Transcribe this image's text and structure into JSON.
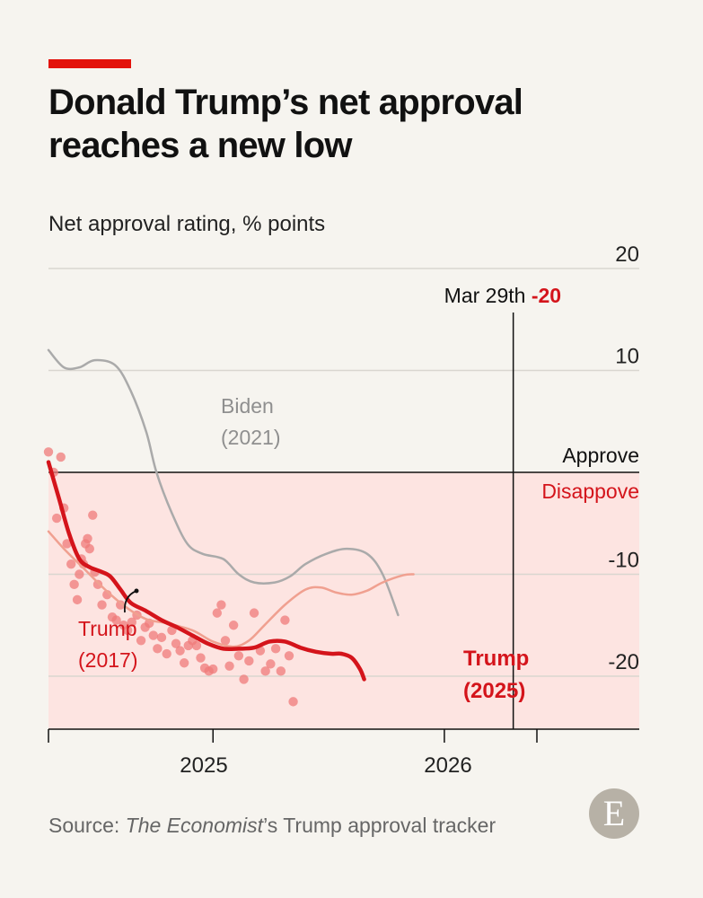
{
  "header": {
    "title": "Donald Trump’s net approval reaches a new low",
    "accent_color": "#e3120b"
  },
  "footer": {
    "source_prefix": "Source: ",
    "source_italic": "The Economist",
    "source_suffix": "’s Trump approval tracker",
    "logo_letter": "E"
  },
  "chart_data": {
    "type": "line",
    "ylabel": "Net approval rating, % points",
    "ylim": [
      -25,
      20
    ],
    "y_ticks": [
      20,
      10,
      -10,
      -20
    ],
    "x_ticks": [
      {
        "label": "2025",
        "days": 0
      },
      {
        "label": "2026",
        "days": 365
      }
    ],
    "x_axis_ticks_days": [
      -20,
      140,
      365,
      455
    ],
    "xlim_days": [
      -20,
      505
    ],
    "grid": true,
    "zero_labels": {
      "above": "Approve",
      "below": "Disappove"
    },
    "marker": {
      "label": "Mar 29th",
      "value_label": "-20",
      "days": 432
    },
    "colors": {
      "trump_2025": "#d4141b",
      "trump_2017": "#f0a090",
      "biden_2021": "#aaaaaa",
      "dots": "#ef7b79",
      "disapprove_fill": "#fde4e1"
    },
    "series": [
      {
        "name": "Biden (2021)",
        "label_lines": [
          "Biden",
          "(2021)"
        ],
        "points": [
          [
            -20,
            12
          ],
          [
            -5,
            10.3
          ],
          [
            10,
            10.3
          ],
          [
            25,
            11
          ],
          [
            45,
            10.5
          ],
          [
            60,
            8
          ],
          [
            75,
            4
          ],
          [
            85,
            0
          ],
          [
            100,
            -4
          ],
          [
            115,
            -7
          ],
          [
            130,
            -8
          ],
          [
            150,
            -8.5
          ],
          [
            165,
            -10
          ],
          [
            180,
            -10.8
          ],
          [
            200,
            -10.8
          ],
          [
            215,
            -10.2
          ],
          [
            230,
            -9
          ],
          [
            250,
            -8
          ],
          [
            270,
            -7.5
          ],
          [
            290,
            -8
          ],
          [
            305,
            -10
          ],
          [
            320,
            -14
          ]
        ]
      },
      {
        "name": "Trump (2017)",
        "label_lines": [
          "Trump",
          "(2017)"
        ],
        "points": [
          [
            -20,
            -5.8
          ],
          [
            -5,
            -7.5
          ],
          [
            15,
            -9.5
          ],
          [
            35,
            -11.5
          ],
          [
            55,
            -13.2
          ],
          [
            75,
            -14.4
          ],
          [
            95,
            -14.8
          ],
          [
            120,
            -15.5
          ],
          [
            140,
            -16.6
          ],
          [
            160,
            -17.1
          ],
          [
            175,
            -16.5
          ],
          [
            190,
            -15
          ],
          [
            210,
            -13
          ],
          [
            230,
            -11.5
          ],
          [
            245,
            -11.3
          ],
          [
            260,
            -11.8
          ],
          [
            275,
            -12
          ],
          [
            290,
            -11.6
          ],
          [
            305,
            -10.8
          ],
          [
            325,
            -10.1
          ],
          [
            335,
            -10
          ]
        ]
      },
      {
        "name": "Trump (2025)",
        "label_lines": [
          "Trump",
          "(2025)"
        ],
        "points": [
          [
            -20,
            1
          ],
          [
            -10,
            -2.5
          ],
          [
            0,
            -6
          ],
          [
            10,
            -8.5
          ],
          [
            20,
            -9.3
          ],
          [
            30,
            -9.7
          ],
          [
            40,
            -10.2
          ],
          [
            50,
            -11.5
          ],
          [
            60,
            -12.8
          ],
          [
            75,
            -13.6
          ],
          [
            90,
            -14.5
          ],
          [
            105,
            -15.2
          ],
          [
            120,
            -16
          ],
          [
            135,
            -16.8
          ],
          [
            150,
            -17.3
          ],
          [
            165,
            -17.3
          ],
          [
            180,
            -17.2
          ],
          [
            195,
            -16.6
          ],
          [
            210,
            -16.6
          ],
          [
            225,
            -17.2
          ],
          [
            240,
            -17.6
          ],
          [
            255,
            -17.8
          ],
          [
            265,
            -17.8
          ],
          [
            275,
            -18.2
          ],
          [
            283,
            -19.3
          ],
          [
            287,
            -20.3
          ]
        ]
      }
    ],
    "poll_dots": [
      [
        -20,
        2
      ],
      [
        -15,
        0
      ],
      [
        -12,
        -4.5
      ],
      [
        -8,
        1.5
      ],
      [
        -5,
        -3.5
      ],
      [
        -2,
        -7
      ],
      [
        2,
        -9
      ],
      [
        5,
        -11
      ],
      [
        8,
        -12.5
      ],
      [
        10,
        -10
      ],
      [
        12,
        -8.5
      ],
      [
        14,
        -9
      ],
      [
        16,
        -7
      ],
      [
        18,
        -6.5
      ],
      [
        20,
        -7.5
      ],
      [
        23,
        -4.2
      ],
      [
        25,
        -9.8
      ],
      [
        28,
        -11
      ],
      [
        32,
        -13
      ],
      [
        37,
        -12
      ],
      [
        42,
        -14.2
      ],
      [
        46,
        -14.5
      ],
      [
        50,
        -13
      ],
      [
        53,
        -15
      ],
      [
        57,
        -15.5
      ],
      [
        61,
        -14.7
      ],
      [
        66,
        -14
      ],
      [
        70,
        -16.5
      ],
      [
        74,
        -15.2
      ],
      [
        78,
        -14.8
      ],
      [
        82,
        -16
      ],
      [
        86,
        -17.3
      ],
      [
        90,
        -16.2
      ],
      [
        95,
        -17.8
      ],
      [
        100,
        -15.5
      ],
      [
        104,
        -16.8
      ],
      [
        108,
        -17.5
      ],
      [
        112,
        -18.7
      ],
      [
        116,
        -17
      ],
      [
        120,
        -16.5
      ],
      [
        124,
        -17
      ],
      [
        128,
        -18.2
      ],
      [
        132,
        -19.2
      ],
      [
        136,
        -19.5
      ],
      [
        140,
        -19.3
      ],
      [
        144,
        -13.8
      ],
      [
        148,
        -13
      ],
      [
        152,
        -16.5
      ],
      [
        156,
        -19
      ],
      [
        160,
        -15
      ],
      [
        165,
        -18
      ],
      [
        170,
        -20.3
      ],
      [
        175,
        -18.5
      ],
      [
        180,
        -13.8
      ],
      [
        186,
        -17.5
      ],
      [
        191,
        -19.5
      ],
      [
        196,
        -18.8
      ],
      [
        201,
        -17.3
      ],
      [
        206,
        -19.5
      ],
      [
        210,
        -14.5
      ],
      [
        214,
        -18
      ],
      [
        218,
        -22.5
      ]
    ]
  }
}
